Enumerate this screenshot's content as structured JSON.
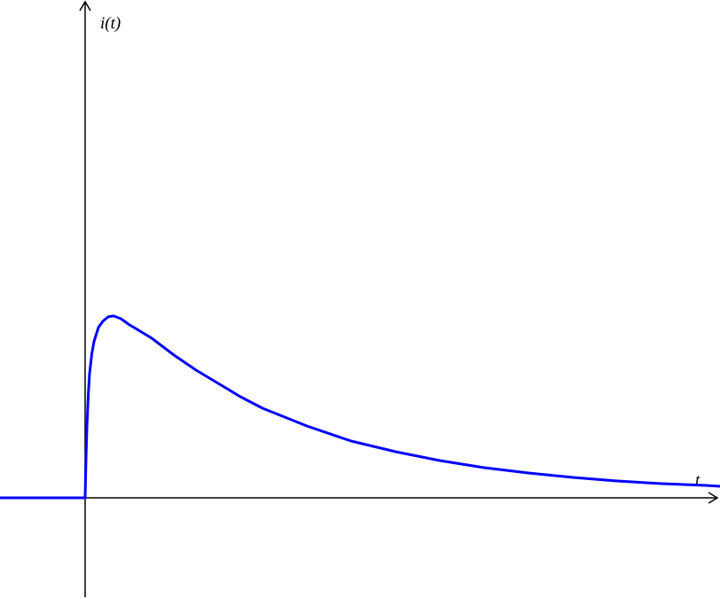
{
  "chart_data": {
    "type": "line",
    "xlabel": "t",
    "ylabel": "i(t)",
    "x": [
      -0.96,
      -0.5,
      0,
      0.01,
      0.02,
      0.035,
      0.05,
      0.075,
      0.1,
      0.15,
      0.2,
      0.26,
      0.32,
      0.4,
      0.5,
      0.75,
      1,
      1.25,
      1.5,
      1.75,
      2,
      2.5,
      3,
      3.5,
      4,
      4.5,
      5,
      5.5,
      6,
      6.5,
      7,
      7.16
    ],
    "values": [
      0,
      0,
      0,
      0.45,
      0.8,
      1.15,
      1.4,
      1.62,
      1.76,
      1.92,
      1.99,
      2.04,
      2.05,
      2.02,
      1.95,
      1.8,
      1.61,
      1.44,
      1.29,
      1.14,
      1.01,
      0.81,
      0.64,
      0.52,
      0.42,
      0.34,
      0.28,
      0.23,
      0.19,
      0.16,
      0.14,
      0.13
    ],
    "color": "#0000ff",
    "xlim": [
      -0.96,
      7.16
    ],
    "ylim": [
      -1.14,
      5.61
    ]
  }
}
